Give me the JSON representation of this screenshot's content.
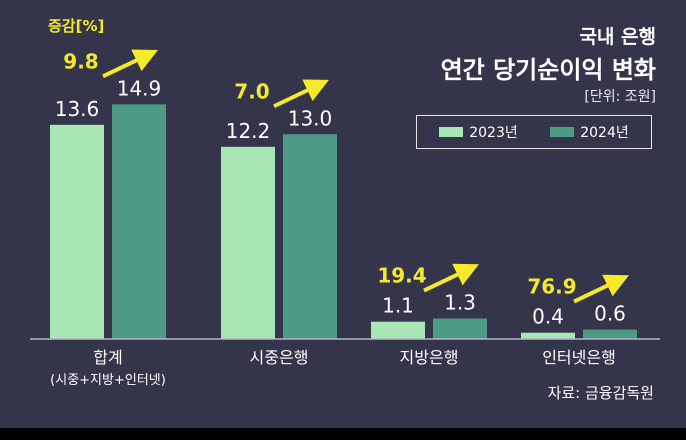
{
  "title_line1": "국내 은행",
  "title_line2": "연간 당기순이익 변화",
  "unit_label": "[단위: 조원]",
  "change_label": "증감[%]",
  "source": "자료: 금융감독원",
  "colors": {
    "background": "#34344a",
    "series_2023": "#a8e6b4",
    "series_2024": "#4d9a85",
    "change_text": "#f5ea2a",
    "text": "#ffffff",
    "baseline": "#b4b4c4"
  },
  "chart_data": {
    "type": "bar",
    "title": "연간 당기순이익 변화",
    "ylabel": "",
    "xlabel": "",
    "categories": [
      "합계",
      "시중은행",
      "지방은행",
      "인터넷은행"
    ],
    "category_sublabels": [
      "(시중+지방+인터넷)",
      "",
      "",
      ""
    ],
    "series": [
      {
        "name": "2023년",
        "values": [
          13.6,
          12.2,
          1.1,
          0.4
        ]
      },
      {
        "name": "2024년",
        "values": [
          14.9,
          13.0,
          1.3,
          0.6
        ]
      }
    ],
    "value_labels": [
      [
        "13.6",
        "12.2",
        "1.1",
        "0.4"
      ],
      [
        "14.9",
        "13.0",
        "1.3",
        "0.6"
      ]
    ],
    "change_pct": [
      9.8,
      7.0,
      19.4,
      76.9
    ],
    "change_labels": [
      "9.8",
      "7.0",
      "19.4",
      "76.9"
    ],
    "ylim": [
      0,
      16.5
    ],
    "grid": false,
    "legend_position": "top-right"
  }
}
